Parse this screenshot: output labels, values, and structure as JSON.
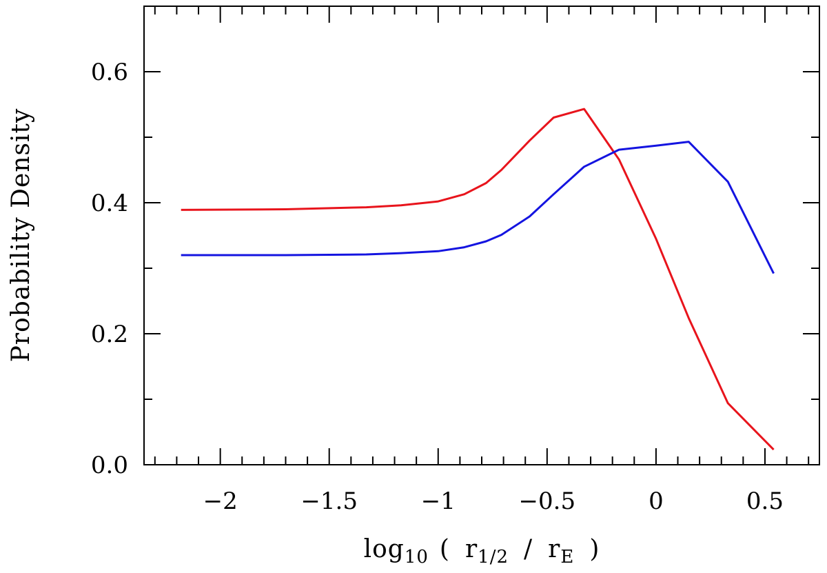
{
  "chart_data": {
    "type": "line",
    "xlabel": {
      "prefix": "log",
      "prefix_sub": "10",
      "open": "(",
      "num": "r",
      "num_sub": "1/2",
      "slash": "/",
      "den": "r",
      "den_sub": "E",
      "close": ")"
    },
    "ylabel": "Probability Density",
    "xlim": [
      -2.35,
      0.75
    ],
    "ylim": [
      0.0,
      0.7
    ],
    "x_ticks": [
      -2,
      -1.5,
      -1,
      -0.5,
      0,
      0.5
    ],
    "x_tick_labels": [
      "−2",
      "−1.5",
      "−1",
      "−0.5",
      "0",
      "0.5"
    ],
    "y_ticks": [
      0.0,
      0.2,
      0.4,
      0.6
    ],
    "y_tick_labels": [
      "0.0",
      "0.2",
      "0.4",
      "0.6"
    ],
    "grid": false,
    "series": [
      {
        "color": "#e8141c",
        "x": [
          -2.18,
          -1.7,
          -1.33,
          -1.17,
          -1.0,
          -0.88,
          -0.78,
          -0.71,
          -0.58,
          -0.47,
          -0.33,
          -0.17,
          0.0,
          0.15,
          0.33,
          0.54
        ],
        "y": [
          0.389,
          0.39,
          0.393,
          0.396,
          0.402,
          0.413,
          0.43,
          0.45,
          0.495,
          0.53,
          0.543,
          0.466,
          0.345,
          0.224,
          0.094,
          0.023
        ]
      },
      {
        "color": "#1414e0",
        "x": [
          -2.18,
          -1.7,
          -1.33,
          -1.17,
          -1.0,
          -0.88,
          -0.78,
          -0.71,
          -0.58,
          -0.47,
          -0.33,
          -0.17,
          0.0,
          0.15,
          0.33,
          0.54
        ],
        "y": [
          0.32,
          0.32,
          0.321,
          0.323,
          0.326,
          0.332,
          0.341,
          0.351,
          0.379,
          0.413,
          0.455,
          0.481,
          0.487,
          0.493,
          0.432,
          0.292
        ]
      }
    ]
  }
}
